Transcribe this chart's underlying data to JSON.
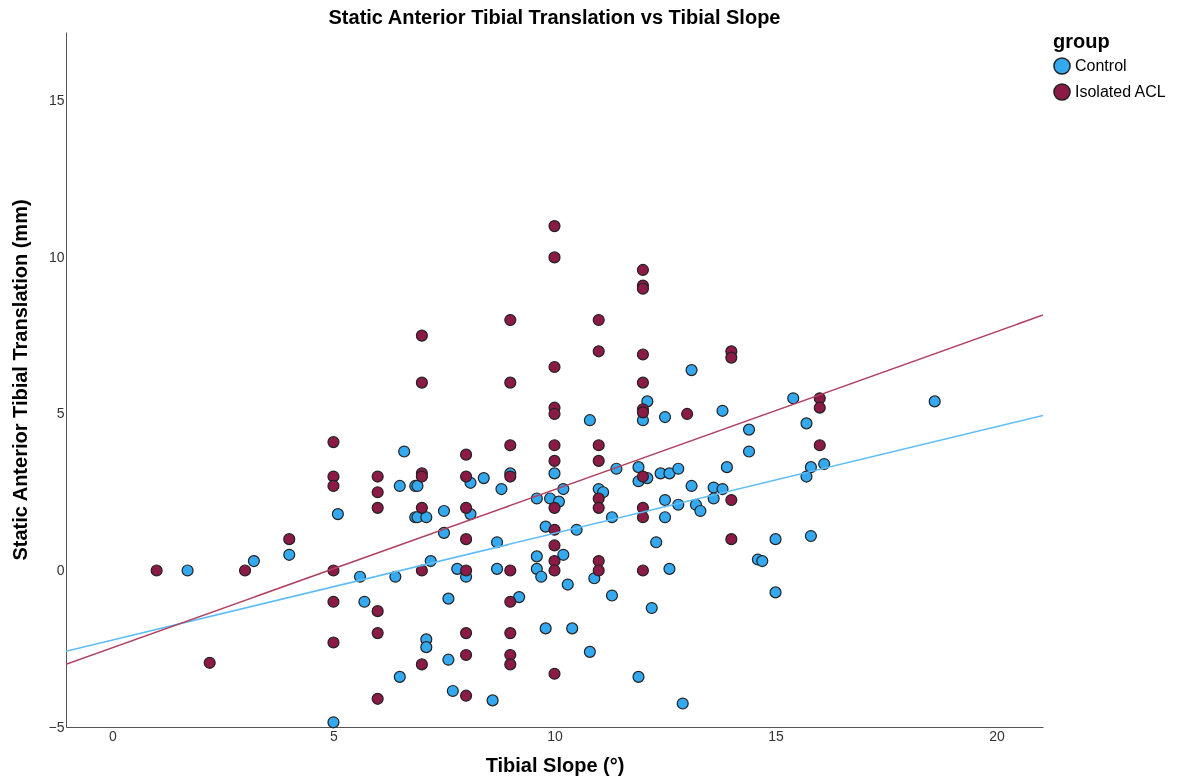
{
  "chart_data": {
    "type": "scatter",
    "title": "Static Anterior Tibial Translation vs Tibial Slope",
    "xlabel": "Tibial Slope (°)",
    "ylabel": "Static Anterior Tibial Translation (mm)",
    "legend_title": "group",
    "legend": "right",
    "grid": false,
    "marker": "circle",
    "xlim": [
      -1.05,
      21.05
    ],
    "xticks": [
      0,
      5,
      10,
      15,
      20
    ],
    "ylim": [
      -5,
      17.2
    ],
    "yticks": [
      -5,
      0,
      5,
      10,
      15
    ],
    "series": [
      {
        "name": "Control",
        "color": "#35a9f0",
        "x": [
          1.7,
          3.2,
          4.0,
          5.1,
          5.0,
          6.6,
          6.5,
          6.85,
          6.85,
          5.6,
          6.4,
          5.7,
          6.5,
          6.9,
          6.9,
          7.1,
          7.5,
          7.5,
          7.2,
          7.6,
          7.1,
          7.1,
          7.6,
          7.7,
          8.1,
          8.4,
          8.1,
          7.8,
          8.0,
          8.7,
          8.7,
          8.6,
          8.8,
          9.0,
          9.2,
          9.6,
          9.9,
          10.1,
          10.2,
          10.0,
          9.8,
          10.5,
          10.2,
          9.6,
          9.6,
          9.7,
          10.3,
          9.8,
          10.4,
          10.8,
          11.0,
          11.1,
          11.3,
          10.9,
          11.3,
          10.8,
          11.4,
          11.9,
          12.1,
          12.0,
          12.5,
          11.9,
          11.9,
          12.1,
          12.4,
          12.6,
          12.5,
          12.5,
          12.3,
          12.6,
          12.2,
          13.1,
          13.8,
          14.4,
          14.4,
          15.4,
          15.7,
          18.6,
          15.7,
          15.8,
          16.1,
          12.8,
          13.9,
          13.1,
          13.6,
          13.8,
          13.6,
          12.8,
          13.2,
          13.3,
          15.0,
          15.8,
          14.6,
          14.7,
          15.0,
          12.9
        ],
        "values": [
          0,
          0.3,
          0.5,
          1.8,
          -4.85,
          3.8,
          2.7,
          2.7,
          1.7,
          -0.2,
          -0.2,
          -1.0,
          -3.4,
          2.7,
          1.7,
          1.7,
          1.9,
          1.2,
          0.3,
          -0.9,
          -2.2,
          -2.45,
          -2.85,
          -3.85,
          2.8,
          2.95,
          1.8,
          0.05,
          -0.2,
          0.9,
          0.05,
          -4.15,
          2.6,
          3.1,
          -0.85,
          2.3,
          2.3,
          2.2,
          2.6,
          3.1,
          1.4,
          1.3,
          0.5,
          0.45,
          0.05,
          -0.2,
          -0.45,
          -1.85,
          -1.85,
          4.8,
          2.6,
          2.5,
          1.7,
          -0.25,
          -0.8,
          -2.6,
          3.25,
          -3.4,
          5.4,
          4.8,
          4.9,
          3.3,
          2.85,
          2.95,
          3.1,
          3.1,
          2.25,
          1.7,
          0.9,
          0.05,
          -1.2,
          6.4,
          5.1,
          4.5,
          3.8,
          5.5,
          4.7,
          5.4,
          3.0,
          3.3,
          3.4,
          3.25,
          3.3,
          2.7,
          2.65,
          2.6,
          2.3,
          2.1,
          2.1,
          1.9,
          1.0,
          1.1,
          0.35,
          0.3,
          -0.7,
          -4.25
        ]
      },
      {
        "name": "Isolated ACL",
        "color": "#8c1a46",
        "x": [
          1.0,
          2.2,
          3.0,
          4.0,
          5,
          5,
          5,
          5,
          5,
          5,
          6,
          6,
          6,
          6,
          6,
          6,
          7,
          7,
          7,
          7,
          7,
          7,
          7,
          8,
          8,
          8,
          8,
          8,
          8,
          8,
          8,
          9,
          9,
          9,
          9,
          9,
          9,
          9,
          9,
          9,
          10,
          10,
          10,
          10,
          10,
          10,
          10,
          10,
          10,
          10,
          10,
          10,
          10,
          11,
          11,
          11,
          11,
          11,
          11,
          11,
          11,
          12,
          12,
          12,
          12,
          12,
          12,
          12,
          12,
          12,
          12,
          12,
          13,
          14,
          14,
          14,
          14,
          16,
          16,
          16
        ],
        "values": [
          0,
          -2.95,
          0,
          1.0,
          4.1,
          3.0,
          2.7,
          0,
          -1,
          -2.3,
          3,
          2.5,
          2,
          -1.3,
          -2,
          -4.1,
          7.5,
          6,
          3.1,
          3,
          2,
          0,
          -3,
          3.7,
          3,
          2,
          1,
          0,
          -2,
          -2.7,
          -4,
          8,
          6,
          4,
          3,
          0,
          -1,
          -2,
          -2.7,
          -3,
          11,
          10,
          6.5,
          5.2,
          5,
          4,
          3.5,
          2,
          1.3,
          0.8,
          0.3,
          0,
          -3.3,
          8,
          7,
          4,
          3.5,
          2.3,
          2,
          0.3,
          0,
          9.6,
          9.1,
          9.0,
          6.9,
          6.0,
          5.15,
          5.05,
          3.0,
          2.0,
          1.7,
          0,
          5.0,
          7.0,
          6.8,
          2.25,
          1.0,
          5.5,
          5.2,
          4.0
        ]
      },
      {
        "type": "line",
        "marker": "none",
        "line_style": "solid",
        "color": "#5cbcf6",
        "x": [
          -1.05,
          21.05
        ],
        "values": [
          -2.58,
          4.95
        ]
      },
      {
        "type": "line",
        "marker": "none",
        "line_style": "solid",
        "color": "#b0405f",
        "x": [
          -1.05,
          21.05
        ],
        "values": [
          -3.0,
          8.16
        ]
      }
    ]
  }
}
